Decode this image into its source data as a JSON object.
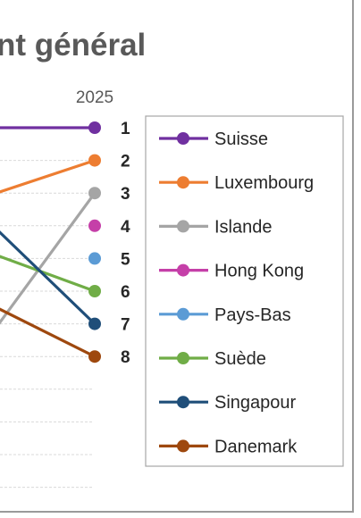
{
  "chart_data": {
    "type": "line",
    "title": "nt général",
    "x": [
      "2025"
    ],
    "ranks": [
      "1",
      "2",
      "3",
      "4",
      "5",
      "6",
      "7",
      "8"
    ],
    "yaxis": {
      "reversed": true,
      "range": [
        1,
        12
      ]
    },
    "grid": true,
    "legend_position": "right",
    "series": [
      {
        "name": "Suisse",
        "color": "#7030A0",
        "rank_2025": 1,
        "left_edge_rank": 1.0
      },
      {
        "name": "Luxembourg",
        "color": "#ED7D31",
        "rank_2025": 2,
        "left_edge_rank": 3.0
      },
      {
        "name": "Islande",
        "color": "#A5A5A5",
        "rank_2025": 3,
        "left_edge_rank": 7.1
      },
      {
        "name": "Hong Kong",
        "color": "#C53FA8",
        "rank_2025": 4,
        "left_edge_rank": null
      },
      {
        "name": "Pays-Bas",
        "color": "#5B9BD5",
        "rank_2025": 5,
        "left_edge_rank": null
      },
      {
        "name": "Suède",
        "color": "#70AD47",
        "rank_2025": 6,
        "left_edge_rank": 4.9
      },
      {
        "name": "Singapour",
        "color": "#1F4E79",
        "rank_2025": 7,
        "left_edge_rank": 4.1
      },
      {
        "name": "Danemark",
        "color": "#9E480E",
        "rank_2025": 8,
        "left_edge_rank": 6.5
      }
    ]
  }
}
